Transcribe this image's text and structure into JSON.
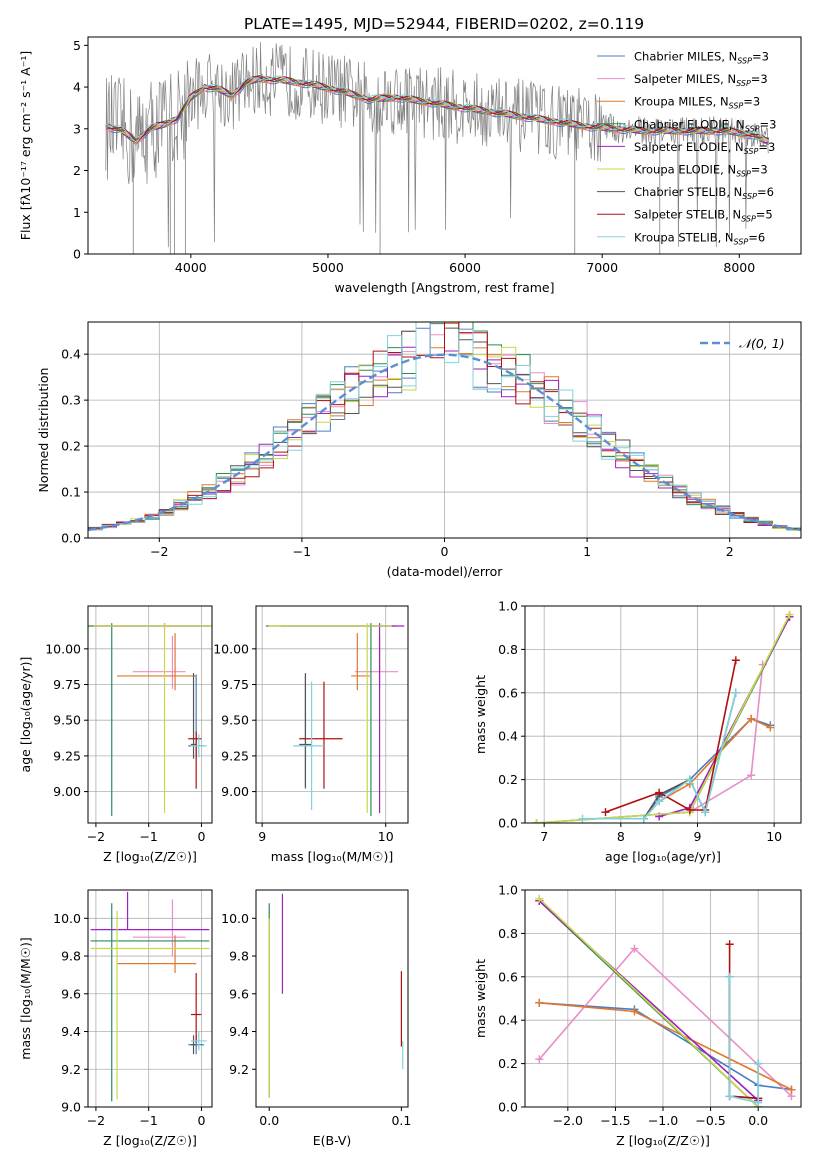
{
  "figure": {
    "title": "PLATE=1495, MJD=52944, FIBERID=0202, z=0.119"
  },
  "series_styles": [
    {
      "name": "Chabrier MILES",
      "nssp": "3",
      "color": "#4a7fc1"
    },
    {
      "name": "Salpeter MILES",
      "nssp": "3",
      "color": "#e88ec6"
    },
    {
      "name": "Kroupa MILES",
      "nssp": "3",
      "color": "#e0782e"
    },
    {
      "name": "Chabrier ELODIE",
      "nssp": "3",
      "color": "#2e8b57"
    },
    {
      "name": "Salpeter ELODIE",
      "nssp": "3",
      "color": "#a020c0"
    },
    {
      "name": "Kroupa ELODIE",
      "nssp": "3",
      "color": "#c8d84a"
    },
    {
      "name": "Chabrier STELIB",
      "nssp": "6",
      "color": "#555555"
    },
    {
      "name": "Salpeter STELIB",
      "nssp": "5",
      "color": "#b01010"
    },
    {
      "name": "Kroupa STELIB",
      "nssp": "6",
      "color": "#7fd3dc"
    }
  ],
  "chart_data": [
    {
      "id": "spectrum",
      "type": "line",
      "xlabel": "wavelength [Angstrom, rest frame]",
      "ylabel": "Flux [fλ10⁻¹⁷ erg cm⁻² s⁻¹ A⁻¹]",
      "xlim": [
        3250,
        8450
      ],
      "ylim": [
        0,
        5.2
      ],
      "xticks": [
        4000,
        5000,
        6000,
        7000,
        8000
      ],
      "yticks": [
        0,
        1,
        2,
        3,
        4,
        5
      ],
      "grid": false,
      "legend": "top-right",
      "legend_suffix": "N_SSP=",
      "data_color": "#808080",
      "x": [
        3400,
        3500,
        3600,
        3700,
        3800,
        3900,
        4000,
        4100,
        4200,
        4300,
        4400,
        4500,
        4700,
        4900,
        5100,
        5300,
        5500,
        5700,
        5900,
        6100,
        6300,
        6500,
        6700,
        6900,
        7100,
        7300,
        7500,
        7700,
        7900,
        8100,
        8200
      ],
      "model": [
        3.05,
        2.95,
        2.7,
        3.0,
        3.1,
        3.25,
        3.75,
        4.0,
        3.95,
        3.8,
        4.1,
        4.2,
        4.15,
        4.05,
        3.9,
        3.7,
        3.75,
        3.65,
        3.55,
        3.45,
        3.35,
        3.25,
        3.15,
        3.05,
        3.0,
        2.95,
        2.95,
        2.95,
        2.95,
        2.85,
        2.7
      ],
      "x_range": [
        3380,
        8220
      ]
    },
    {
      "id": "residuals",
      "type": "histogram",
      "xlabel": "(data-model)/error",
      "ylabel": "Normed distribution",
      "xlim": [
        -2.5,
        2.5
      ],
      "ylim": [
        0,
        0.47
      ],
      "xticks": [
        -2,
        -1,
        0,
        1,
        2
      ],
      "yticks": [
        0.0,
        0.1,
        0.2,
        0.3,
        0.4
      ],
      "grid": true,
      "legend": "top-right",
      "reference_label": "𝒩(0, 1)",
      "reference_color": "#5b8fd4",
      "bin_width": 0.1
    },
    {
      "id": "age-vs-Z",
      "type": "errorbar",
      "xlabel": "Z [log₁₀(Z/Z☉)]",
      "ylabel": "age  [log₁₀(age/yr)]",
      "xlim": [
        -2.15,
        0.2
      ],
      "ylim": [
        8.78,
        10.3
      ],
      "xticks": [
        -2,
        -1,
        0
      ],
      "yticks": [
        9.0,
        9.25,
        9.5,
        9.75,
        10.0
      ],
      "grid": true,
      "points": [
        {
          "series": 0,
          "x": -0.1,
          "y": 9.32,
          "xerr": [
            0.15,
            0.15
          ],
          "yerr": [
            0.08,
            0.5
          ]
        },
        {
          "series": 1,
          "x": -0.55,
          "y": 9.84,
          "xerr": [
            0.75,
            0.25
          ],
          "yerr": [
            0.12,
            0.25
          ]
        },
        {
          "series": 2,
          "x": -0.5,
          "y": 9.81,
          "xerr": [
            1.1,
            0.4
          ],
          "yerr": [
            0.1,
            0.3
          ]
        },
        {
          "series": 3,
          "x": -1.7,
          "y": 10.16,
          "xerr": [
            0.5,
            1.85
          ],
          "yerr": [
            1.33,
            0.02
          ]
        },
        {
          "series": 4,
          "x": -0.7,
          "y": 10.16,
          "xerr": [
            1.35,
            0.9
          ],
          "yerr": [
            0.02,
            0.02
          ]
        },
        {
          "series": 5,
          "x": -0.7,
          "y": 10.16,
          "xerr": [
            1.35,
            0.9
          ],
          "yerr": [
            1.31,
            0.02
          ]
        },
        {
          "series": 6,
          "x": -0.15,
          "y": 9.33,
          "xerr": [
            0.05,
            0.05
          ],
          "yerr": [
            0.1,
            0.5
          ]
        },
        {
          "series": 7,
          "x": -0.1,
          "y": 9.37,
          "xerr": [
            0.15,
            0.1
          ],
          "yerr": [
            0.35,
            0.05
          ]
        },
        {
          "series": 8,
          "x": -0.05,
          "y": 9.32,
          "xerr": [
            0.15,
            0.15
          ],
          "yerr": [
            0.08,
            0.08
          ]
        }
      ]
    },
    {
      "id": "age-vs-mass",
      "type": "errorbar",
      "xlabel": "mass [log₁₀(M/M☉)]",
      "ylabel": "",
      "xlim": [
        8.95,
        10.18
      ],
      "ylim": [
        8.78,
        10.3
      ],
      "xticks": [
        9,
        10
      ],
      "yticks": [
        9.0,
        9.25,
        9.5,
        9.75,
        10.0
      ],
      "grid": true,
      "points": [
        {
          "series": 0,
          "x": 9.35,
          "y": 9.32,
          "xerr": [
            0.05,
            0.05
          ],
          "yerr": [
            0.3,
            0.5
          ]
        },
        {
          "series": 1,
          "x": 9.95,
          "y": 9.84,
          "xerr": [
            0.2,
            0.15
          ],
          "yerr": [
            0.12,
            0.25
          ]
        },
        {
          "series": 2,
          "x": 9.77,
          "y": 9.81,
          "xerr": [
            0.05,
            0.1
          ],
          "yerr": [
            0.1,
            0.3
          ]
        },
        {
          "series": 3,
          "x": 9.88,
          "y": 10.16,
          "xerr": [
            0.85,
            0.2
          ],
          "yerr": [
            1.33,
            0.02
          ]
        },
        {
          "series": 4,
          "x": 9.95,
          "y": 10.16,
          "xerr": [
            0.8,
            0.2
          ],
          "yerr": [
            1.31,
            0.02
          ]
        },
        {
          "series": 5,
          "x": 9.85,
          "y": 10.16,
          "xerr": [
            0.8,
            0.2
          ],
          "yerr": [
            1.31,
            0.02
          ]
        },
        {
          "series": 6,
          "x": 9.35,
          "y": 9.33,
          "xerr": [
            0.05,
            0.05
          ],
          "yerr": [
            0.3,
            0.5
          ]
        },
        {
          "series": 7,
          "x": 9.5,
          "y": 9.37,
          "xerr": [
            0.2,
            0.15
          ],
          "yerr": [
            0.35,
            0.4
          ]
        },
        {
          "series": 8,
          "x": 9.4,
          "y": 9.32,
          "xerr": [
            0.15,
            0.1
          ],
          "yerr": [
            0.45,
            0.45
          ]
        }
      ]
    },
    {
      "id": "weight-vs-age",
      "type": "line",
      "xlabel": "age  [log₁₀(age/yr)]",
      "ylabel": "mass weight",
      "xlim": [
        6.75,
        10.35
      ],
      "ylim": [
        0,
        1.0
      ],
      "xticks": [
        7,
        8,
        9,
        10
      ],
      "yticks": [
        0.0,
        0.2,
        0.4,
        0.6,
        0.8,
        1.0
      ],
      "grid": true,
      "series": [
        {
          "series": 0,
          "x": [
            8.3,
            8.5,
            8.9,
            9.7,
            9.95
          ],
          "y": [
            0.02,
            0.12,
            0.2,
            0.48,
            0.45
          ]
        },
        {
          "series": 1,
          "x": [
            8.9,
            9.7,
            9.85
          ],
          "y": [
            0.05,
            0.22,
            0.73
          ]
        },
        {
          "series": 2,
          "x": [
            8.3,
            8.5,
            8.9,
            9.7,
            9.95
          ],
          "y": [
            0.02,
            0.1,
            0.18,
            0.48,
            0.44
          ]
        },
        {
          "series": 3,
          "x": [
            6.9,
            8.9,
            10.2
          ],
          "y": [
            0.0,
            0.05,
            0.95
          ]
        },
        {
          "series": 4,
          "x": [
            8.5,
            8.9,
            10.2
          ],
          "y": [
            0.03,
            0.07,
            0.95
          ]
        },
        {
          "series": 5,
          "x": [
            6.9,
            8.9,
            10.2
          ],
          "y": [
            0.0,
            0.05,
            0.96
          ]
        },
        {
          "series": 6,
          "x": [
            8.3,
            8.5,
            8.9,
            9.1,
            9.5
          ],
          "y": [
            0.02,
            0.13,
            0.2,
            0.05,
            0.6
          ]
        },
        {
          "series": 7,
          "x": [
            7.8,
            8.5,
            8.9,
            9.1,
            9.5
          ],
          "y": [
            0.05,
            0.14,
            0.06,
            0.06,
            0.75
          ]
        },
        {
          "series": 8,
          "x": [
            7.5,
            8.3,
            8.5,
            8.9,
            9.1,
            9.5
          ],
          "y": [
            0.02,
            0.02,
            0.1,
            0.2,
            0.05,
            0.6
          ]
        }
      ]
    },
    {
      "id": "mass-vs-Z",
      "type": "errorbar",
      "xlabel": "Z [log₁₀(Z/Z☉)]",
      "ylabel": "mass [log₁₀(M/M☉)]",
      "xlim": [
        -2.15,
        0.2
      ],
      "ylim": [
        9.0,
        10.15
      ],
      "xticks": [
        -2,
        -1,
        0
      ],
      "yticks": [
        9.0,
        9.2,
        9.4,
        9.6,
        9.8,
        10.0
      ],
      "grid": true,
      "points": [
        {
          "series": 0,
          "x": -0.1,
          "y": 9.33,
          "xerr": [
            0.15,
            0.15
          ],
          "yerr": [
            0.05,
            0.05
          ]
        },
        {
          "series": 1,
          "x": -0.55,
          "y": 9.9,
          "xerr": [
            0.75,
            0.25
          ],
          "yerr": [
            0.1,
            0.2
          ]
        },
        {
          "series": 2,
          "x": -0.5,
          "y": 9.76,
          "xerr": [
            1.1,
            0.4
          ],
          "yerr": [
            0.05,
            0.15
          ]
        },
        {
          "series": 3,
          "x": -1.7,
          "y": 9.88,
          "xerr": [
            0.4,
            1.85
          ],
          "yerr": [
            0.85,
            0.2
          ]
        },
        {
          "series": 4,
          "x": -1.4,
          "y": 9.94,
          "xerr": [
            0.7,
            1.55
          ],
          "yerr": [
            0.0,
            0.2
          ]
        },
        {
          "series": 5,
          "x": -1.6,
          "y": 9.84,
          "xerr": [
            0.5,
            1.75
          ],
          "yerr": [
            0.8,
            0.2
          ]
        },
        {
          "series": 6,
          "x": -0.15,
          "y": 9.33,
          "xerr": [
            0.05,
            0.05
          ],
          "yerr": [
            0.05,
            0.05
          ]
        },
        {
          "series": 7,
          "x": -0.1,
          "y": 9.49,
          "xerr": [
            0.1,
            0.1
          ],
          "yerr": [
            0.15,
            0.22
          ]
        },
        {
          "series": 8,
          "x": -0.05,
          "y": 9.35,
          "xerr": [
            0.15,
            0.15
          ],
          "yerr": [
            0.05,
            0.05
          ]
        }
      ]
    },
    {
      "id": "mass-vs-EBV",
      "type": "errorbar",
      "xlabel": "E(B-V)",
      "ylabel": "",
      "xlim": [
        -0.01,
        0.105
      ],
      "ylim": [
        9.0,
        10.15
      ],
      "xticks": [
        0.0,
        0.1
      ],
      "yticks": [
        9.2,
        9.4,
        9.6,
        9.8,
        10.0
      ],
      "grid": false,
      "points": [
        {
          "series": 3,
          "x": 0.0,
          "y": 9.5,
          "xerr": [
            0,
            0
          ],
          "yerr": [
            0.45,
            0.58
          ]
        },
        {
          "series": 4,
          "x": 0.01,
          "y": 9.6,
          "xerr": [
            0,
            0
          ],
          "yerr": [
            0.0,
            0.53
          ]
        },
        {
          "series": 5,
          "x": 0.0,
          "y": 9.55,
          "xerr": [
            0,
            0
          ],
          "yerr": [
            0.5,
            0.45
          ]
        },
        {
          "series": 7,
          "x": 0.1,
          "y": 9.5,
          "xerr": [
            0,
            0
          ],
          "yerr": [
            0.18,
            0.22
          ]
        },
        {
          "series": 8,
          "x": 0.101,
          "y": 9.3,
          "xerr": [
            0,
            0
          ],
          "yerr": [
            0.1,
            0.05
          ]
        }
      ]
    },
    {
      "id": "weight-vs-Z",
      "type": "line",
      "xlabel": "Z [log₁₀(Z/Z☉)]",
      "ylabel": "mass weight",
      "xlim": [
        -2.45,
        0.45
      ],
      "ylim": [
        0,
        1.0
      ],
      "xticks": [
        -2.0,
        -1.5,
        -1.0,
        -0.5,
        0.0
      ],
      "yticks": [
        0.0,
        0.2,
        0.4,
        0.6,
        0.8,
        1.0
      ],
      "grid": true,
      "series": [
        {
          "series": 0,
          "x": [
            -2.3,
            -1.3,
            0.0,
            0.35
          ],
          "y": [
            0.48,
            0.45,
            0.1,
            0.08
          ]
        },
        {
          "series": 1,
          "x": [
            -2.3,
            -1.3,
            0.35
          ],
          "y": [
            0.22,
            0.73,
            0.05
          ]
        },
        {
          "series": 2,
          "x": [
            -2.3,
            -1.3,
            0.35
          ],
          "y": [
            0.48,
            0.44,
            0.08
          ]
        },
        {
          "series": 3,
          "x": [
            -2.3,
            0.0
          ],
          "y": [
            0.95,
            0.0
          ]
        },
        {
          "series": 4,
          "x": [
            -2.3,
            0.0
          ],
          "y": [
            0.95,
            0.03
          ]
        },
        {
          "series": 5,
          "x": [
            -2.3,
            0.0
          ],
          "y": [
            0.96,
            0.0
          ]
        },
        {
          "series": 6,
          "x": [
            -0.3,
            -0.3,
            0.0,
            0.0
          ],
          "y": [
            0.6,
            0.05,
            0.04,
            0.2
          ]
        },
        {
          "series": 7,
          "x": [
            -0.3,
            -0.3,
            0.0
          ],
          "y": [
            0.75,
            0.05,
            0.04
          ]
        },
        {
          "series": 8,
          "x": [
            -0.3,
            -0.3,
            0.0,
            0.0
          ],
          "y": [
            0.6,
            0.05,
            0.02,
            0.2
          ]
        }
      ]
    }
  ]
}
